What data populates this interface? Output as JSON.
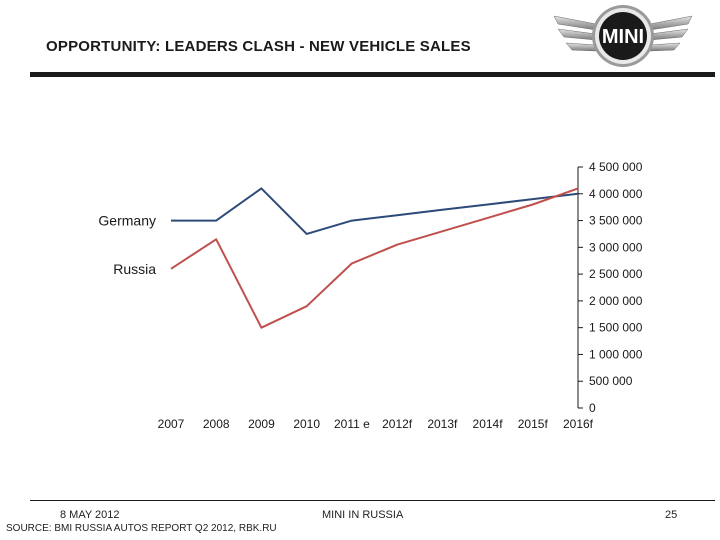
{
  "slide": {
    "title": "OPPORTUNITY: LEADERS CLASH - NEW VEHICLE SALES",
    "date": "8 MAY 2012",
    "source": "SOURCE: BMI RUSSIA AUTOS REPORT Q2 2012, RBK.RU",
    "center_footer": "MINI IN RUSSIA",
    "page_number": "25"
  },
  "logo": {
    "text": "MINI"
  },
  "colors": {
    "germany": "#2e4a78",
    "russia": "#c0504d",
    "text": "#1a1a1a",
    "rule": "#1b1b1b"
  },
  "chart_data": {
    "type": "line",
    "categories": [
      "2007",
      "2008",
      "2009",
      "2010",
      "2011 e",
      "2012f",
      "2013f",
      "2014f",
      "2015f",
      "2016f"
    ],
    "series": [
      {
        "name": "Germany",
        "values": [
          3500000,
          3500000,
          4100000,
          3250000,
          3500000,
          3600000,
          3700000,
          3800000,
          3900000,
          4000000
        ]
      },
      {
        "name": "Russia",
        "values": [
          2600000,
          3150000,
          1500000,
          1900000,
          2700000,
          3050000,
          3300000,
          3550000,
          3800000,
          4100000
        ]
      }
    ],
    "y_tick_labels": [
      "0",
      "500 000",
      "1 000 000",
      "1 500 000",
      "2 000 000",
      "2 500 000",
      "3 000 000",
      "3 500 000",
      "4 000 000",
      "4 500 000"
    ],
    "ylim": [
      0,
      4500000
    ],
    "y_axis_side": "right",
    "grid": false,
    "legend": "inline labels at left"
  }
}
